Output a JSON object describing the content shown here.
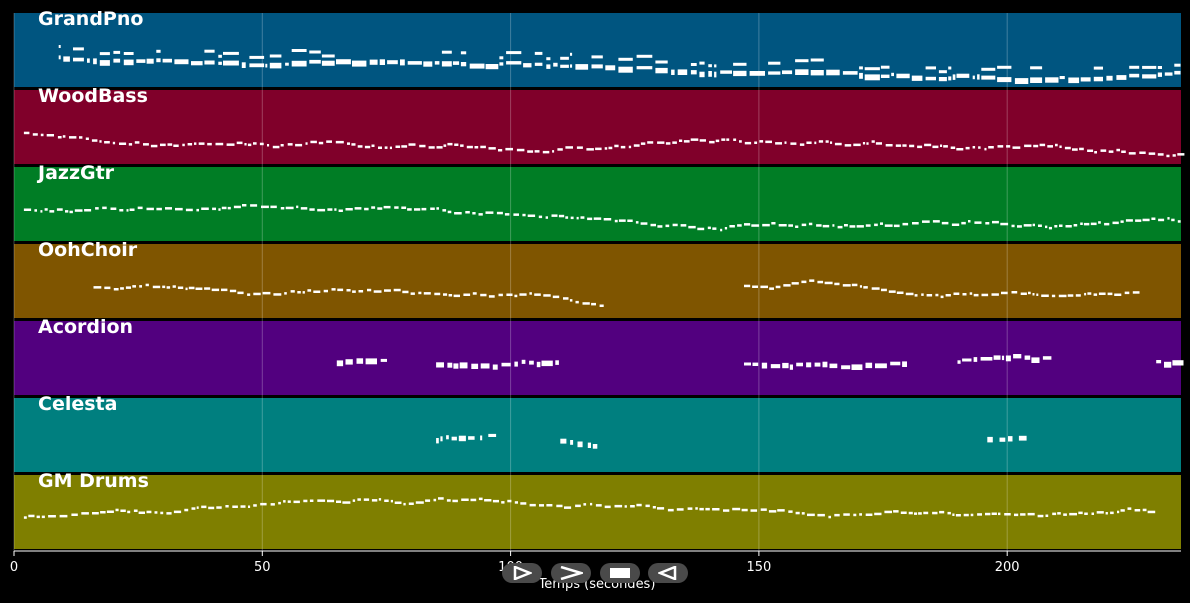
{
  "tracks": [
    {
      "name": "GrandPno",
      "color": "#005580"
    },
    {
      "name": "WoodBass",
      "color": "#80002a"
    },
    {
      "name": "JazzGtr",
      "color": "#007d25"
    },
    {
      "name": "OohChoir",
      "color": "#7f5500"
    },
    {
      "name": "Acordion",
      "color": "#52007f"
    },
    {
      "name": "Celesta",
      "color": "#007f7f"
    },
    {
      "name": "GM Drums",
      "color": "#7f7f00"
    }
  ],
  "axis": {
    "x_ticks": [
      "0",
      "50",
      "100",
      "150",
      "200"
    ],
    "x_label": "Temps (secondes)"
  },
  "controls": [
    {
      "name": "play-button",
      "icon": "play-icon"
    },
    {
      "name": "fast-forward-button",
      "icon": "fast-forward-icon"
    },
    {
      "name": "stop-button",
      "icon": "stop-icon"
    },
    {
      "name": "rewind-button",
      "icon": "rewind-icon"
    }
  ]
}
